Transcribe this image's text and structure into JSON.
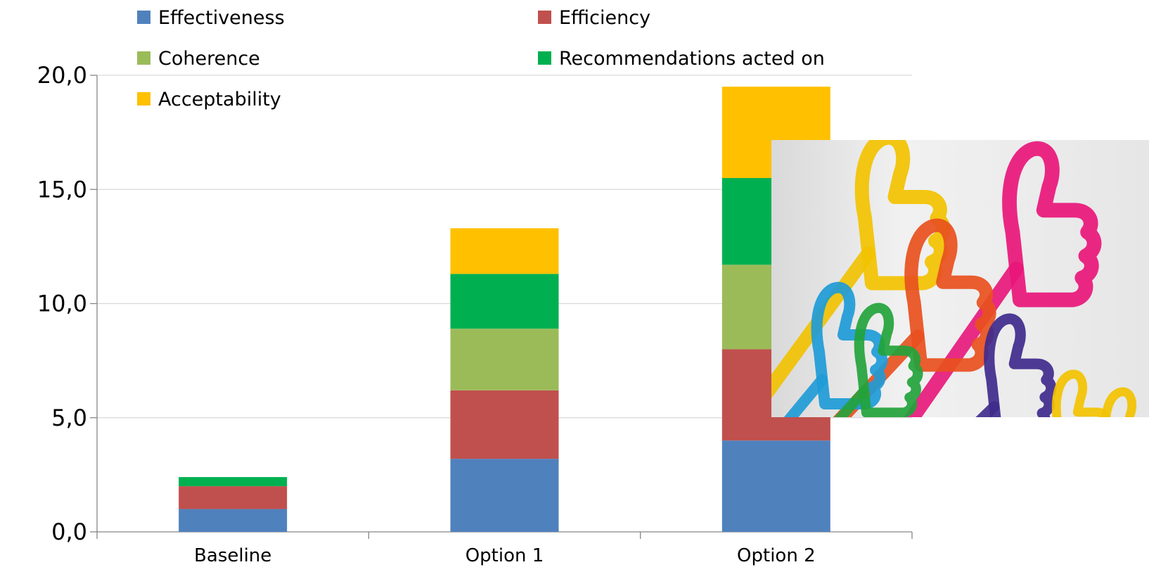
{
  "chart_data": {
    "type": "bar",
    "stacked": true,
    "categories": [
      "Baseline",
      "Option 1",
      "Option 2"
    ],
    "series": [
      {
        "name": "Effectiveness",
        "color": "#4F81BD",
        "values": [
          1.0,
          3.2,
          4.0
        ]
      },
      {
        "name": "Efficiency",
        "color": "#C0504D",
        "values": [
          1.0,
          3.0,
          4.0
        ]
      },
      {
        "name": "Coherence",
        "color": "#9BBB59",
        "values": [
          0.0,
          2.7,
          3.7
        ]
      },
      {
        "name": "Recommendations acted on",
        "color": "#00B050",
        "values": [
          0.4,
          2.4,
          3.8
        ]
      },
      {
        "name": "Acceptability",
        "color": "#FFC000",
        "values": [
          0.0,
          2.0,
          4.0
        ]
      }
    ],
    "yticks": [
      "0,0",
      "5,0",
      "10,0",
      "15,0",
      "20,0"
    ],
    "ylim": [
      0,
      20
    ],
    "grid": true,
    "legend_position": "top-left",
    "title": "",
    "xlabel": "",
    "ylabel": ""
  },
  "overlay_image": {
    "subject": "colorful outlined thumbs-up hands",
    "colors": [
      "#F2C200",
      "#E8167A",
      "#E8501E",
      "#1E9BD7",
      "#23A33B",
      "#3F2A8C"
    ]
  }
}
